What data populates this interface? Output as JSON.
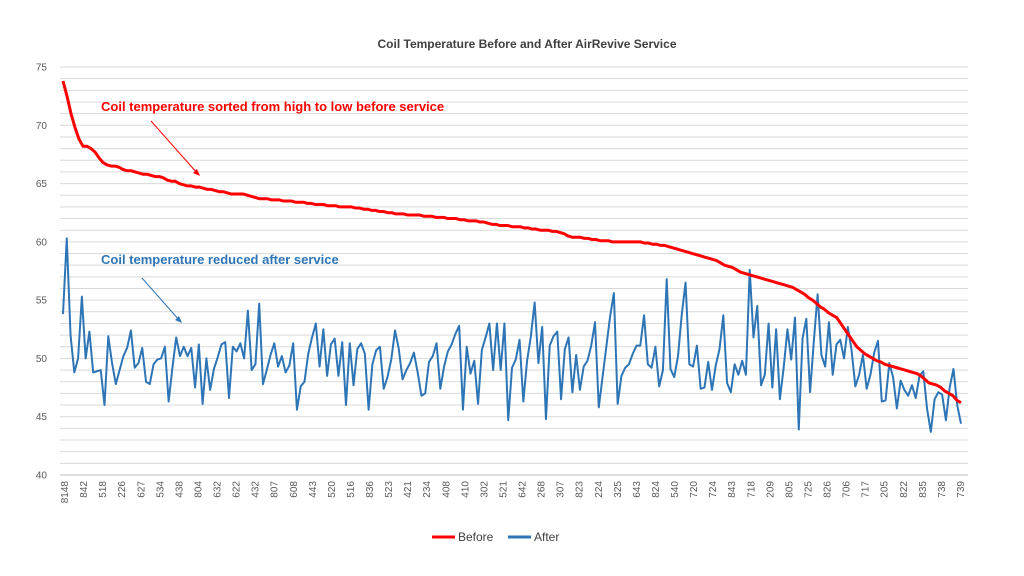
{
  "chart_data": {
    "type": "line",
    "title": "Coil Temperature Before and After AirRevive Service",
    "xlabel": "",
    "ylabel": "",
    "ylim": [
      40,
      75
    ],
    "y_ticks": [
      "40",
      "45",
      "50",
      "55",
      "60",
      "65",
      "70",
      "75"
    ],
    "grid_step": 1,
    "x_tick_labels": [
      "8148",
      "842",
      "518",
      "226",
      "627",
      "534",
      "438",
      "804",
      "632",
      "622",
      "432",
      "807",
      "608",
      "443",
      "520",
      "516",
      "836",
      "523",
      "421",
      "234",
      "408",
      "410",
      "302",
      "521",
      "642",
      "268",
      "307",
      "823",
      "224",
      "325",
      "643",
      "824",
      "540",
      "720",
      "724",
      "843",
      "718",
      "209",
      "805",
      "725",
      "826",
      "706",
      "717",
      "205",
      "822",
      "835",
      "738",
      "739"
    ],
    "series": [
      {
        "name": "Before",
        "color": "#ff0000",
        "values": [
          73.8,
          72.5,
          71.0,
          69.8,
          68.8,
          68.2,
          68.2,
          68.0,
          67.7,
          67.2,
          66.8,
          66.6,
          66.5,
          66.5,
          66.4,
          66.2,
          66.1,
          66.1,
          66.0,
          65.9,
          65.8,
          65.8,
          65.7,
          65.6,
          65.6,
          65.5,
          65.3,
          65.2,
          65.2,
          65.0,
          64.9,
          64.8,
          64.8,
          64.7,
          64.7,
          64.6,
          64.5,
          64.5,
          64.4,
          64.3,
          64.3,
          64.2,
          64.1,
          64.1,
          64.1,
          64.1,
          64.0,
          63.9,
          63.8,
          63.7,
          63.7,
          63.7,
          63.6,
          63.6,
          63.6,
          63.5,
          63.5,
          63.5,
          63.4,
          63.4,
          63.4,
          63.3,
          63.3,
          63.2,
          63.2,
          63.2,
          63.1,
          63.1,
          63.1,
          63.0,
          63.0,
          63.0,
          63.0,
          62.9,
          62.9,
          62.8,
          62.8,
          62.7,
          62.7,
          62.6,
          62.6,
          62.5,
          62.5,
          62.4,
          62.4,
          62.4,
          62.3,
          62.3,
          62.3,
          62.3,
          62.2,
          62.2,
          62.2,
          62.1,
          62.1,
          62.1,
          62.0,
          62.0,
          62.0,
          61.9,
          61.9,
          61.8,
          61.8,
          61.8,
          61.7,
          61.7,
          61.6,
          61.5,
          61.5,
          61.4,
          61.4,
          61.4,
          61.3,
          61.3,
          61.3,
          61.2,
          61.2,
          61.1,
          61.1,
          61.0,
          61.0,
          61.0,
          60.9,
          60.9,
          60.8,
          60.7,
          60.5,
          60.4,
          60.4,
          60.4,
          60.3,
          60.3,
          60.2,
          60.2,
          60.1,
          60.1,
          60.1,
          60.0,
          60.0,
          60.0,
          60.0,
          60.0,
          60.0,
          60.0,
          60.0,
          59.9,
          59.9,
          59.8,
          59.8,
          59.7,
          59.7,
          59.6,
          59.5,
          59.4,
          59.3,
          59.2,
          59.1,
          59.0,
          58.9,
          58.8,
          58.7,
          58.6,
          58.5,
          58.4,
          58.2,
          58.0,
          57.9,
          57.8,
          57.6,
          57.4,
          57.3,
          57.2,
          57.1,
          57.0,
          56.9,
          56.8,
          56.7,
          56.6,
          56.5,
          56.4,
          56.3,
          56.2,
          56.1,
          55.9,
          55.7,
          55.5,
          55.2,
          55.0,
          54.7,
          54.4,
          54.2,
          53.9,
          53.7,
          53.5,
          53.0,
          52.5,
          52.0,
          51.5,
          51.0,
          50.7,
          50.4,
          50.2,
          50.0,
          49.8,
          49.7,
          49.5,
          49.4,
          49.3,
          49.2,
          49.1,
          49.0,
          48.9,
          48.8,
          48.7,
          48.5,
          48.2,
          47.9,
          47.8,
          47.7,
          47.5,
          47.2,
          47.0,
          46.8,
          46.4,
          46.2
        ]
      },
      {
        "name": "After",
        "color": "#2e75b6",
        "values": [
          53.8,
          60.3,
          52.0,
          48.8,
          50.0,
          55.3,
          50.0,
          52.3,
          48.8,
          48.9,
          49.0,
          46.0,
          51.9,
          49.6,
          47.8,
          49.0,
          50.2,
          50.9,
          52.4,
          49.2,
          49.6,
          50.9,
          48.0,
          47.8,
          49.5,
          49.9,
          50.0,
          51.0,
          46.3,
          49.2,
          51.8,
          50.2,
          51.0,
          50.2,
          50.9,
          47.5,
          51.2,
          46.1,
          50.0,
          47.3,
          49.1,
          50.1,
          51.2,
          51.4,
          46.6,
          51.0,
          50.6,
          51.3,
          50.0,
          54.1,
          49.0,
          49.5,
          54.7,
          47.8,
          49.0,
          50.3,
          51.3,
          49.3,
          50.2,
          48.8,
          49.4,
          51.3,
          45.6,
          47.6,
          48.0,
          50.4,
          51.8,
          53.0,
          49.3,
          52.5,
          48.5,
          51.2,
          51.7,
          48.5,
          51.4,
          46.0,
          51.3,
          47.7,
          50.8,
          51.3,
          50.4,
          45.6,
          49.5,
          50.7,
          51.0,
          47.4,
          48.4,
          49.9,
          52.4,
          50.8,
          48.2,
          49.0,
          49.6,
          50.5,
          48.8,
          46.8,
          47.0,
          49.7,
          50.2,
          51.3,
          47.4,
          49.3,
          50.6,
          51.2,
          52.1,
          52.8,
          45.6,
          51.0,
          48.7,
          49.8,
          46.1,
          50.7,
          51.8,
          53.0,
          49.0,
          53.0,
          49.0,
          53.0,
          44.7,
          49.2,
          49.9,
          51.6,
          46.3,
          49.8,
          51.9,
          54.8,
          49.6,
          52.7,
          44.8,
          51.1,
          51.9,
          52.3,
          46.5,
          50.8,
          51.8,
          47.1,
          50.3,
          47.3,
          49.3,
          49.8,
          51.1,
          53.1,
          45.8,
          48.4,
          51.0,
          53.6,
          55.6,
          46.1,
          48.5,
          49.2,
          49.5,
          50.4,
          51.1,
          51.1,
          53.7,
          49.5,
          49.2,
          51.0,
          47.6,
          49.0,
          56.8,
          49.1,
          48.4,
          50.2,
          53.8,
          56.5,
          49.5,
          49.3,
          51.1,
          47.4,
          47.5,
          49.7,
          47.3,
          49.4,
          50.8,
          53.7,
          47.9,
          47.1,
          49.5,
          48.6,
          49.8,
          48.6,
          57.6,
          51.8,
          54.5,
          47.7,
          48.6,
          53.0,
          47.5,
          52.5,
          46.5,
          49.2,
          52.5,
          49.9,
          53.5,
          43.9,
          51.7,
          53.4,
          47.1,
          51.5,
          55.5,
          50.3,
          49.3,
          53.1,
          48.6,
          51.2,
          51.6,
          50.0,
          52.7,
          50.7,
          47.6,
          48.6,
          50.3,
          47.4,
          48.6,
          50.5,
          51.5,
          46.3,
          46.4,
          49.6,
          48.4,
          45.7,
          48.1,
          47.3,
          46.8,
          47.7,
          46.6,
          48.5,
          48.9,
          45.7,
          43.7,
          46.5,
          47.1,
          46.9,
          44.7,
          47.5,
          49.1,
          46.0,
          44.4
        ]
      }
    ],
    "legend": {
      "position": "bottom",
      "entries": [
        "Before",
        "After"
      ]
    },
    "annotations": [
      {
        "text": "Coil temperature sorted from high to low  before service",
        "color": "#ff0000"
      },
      {
        "text": "Coil temperature reduced after service",
        "color": "#2e75b6"
      }
    ]
  }
}
